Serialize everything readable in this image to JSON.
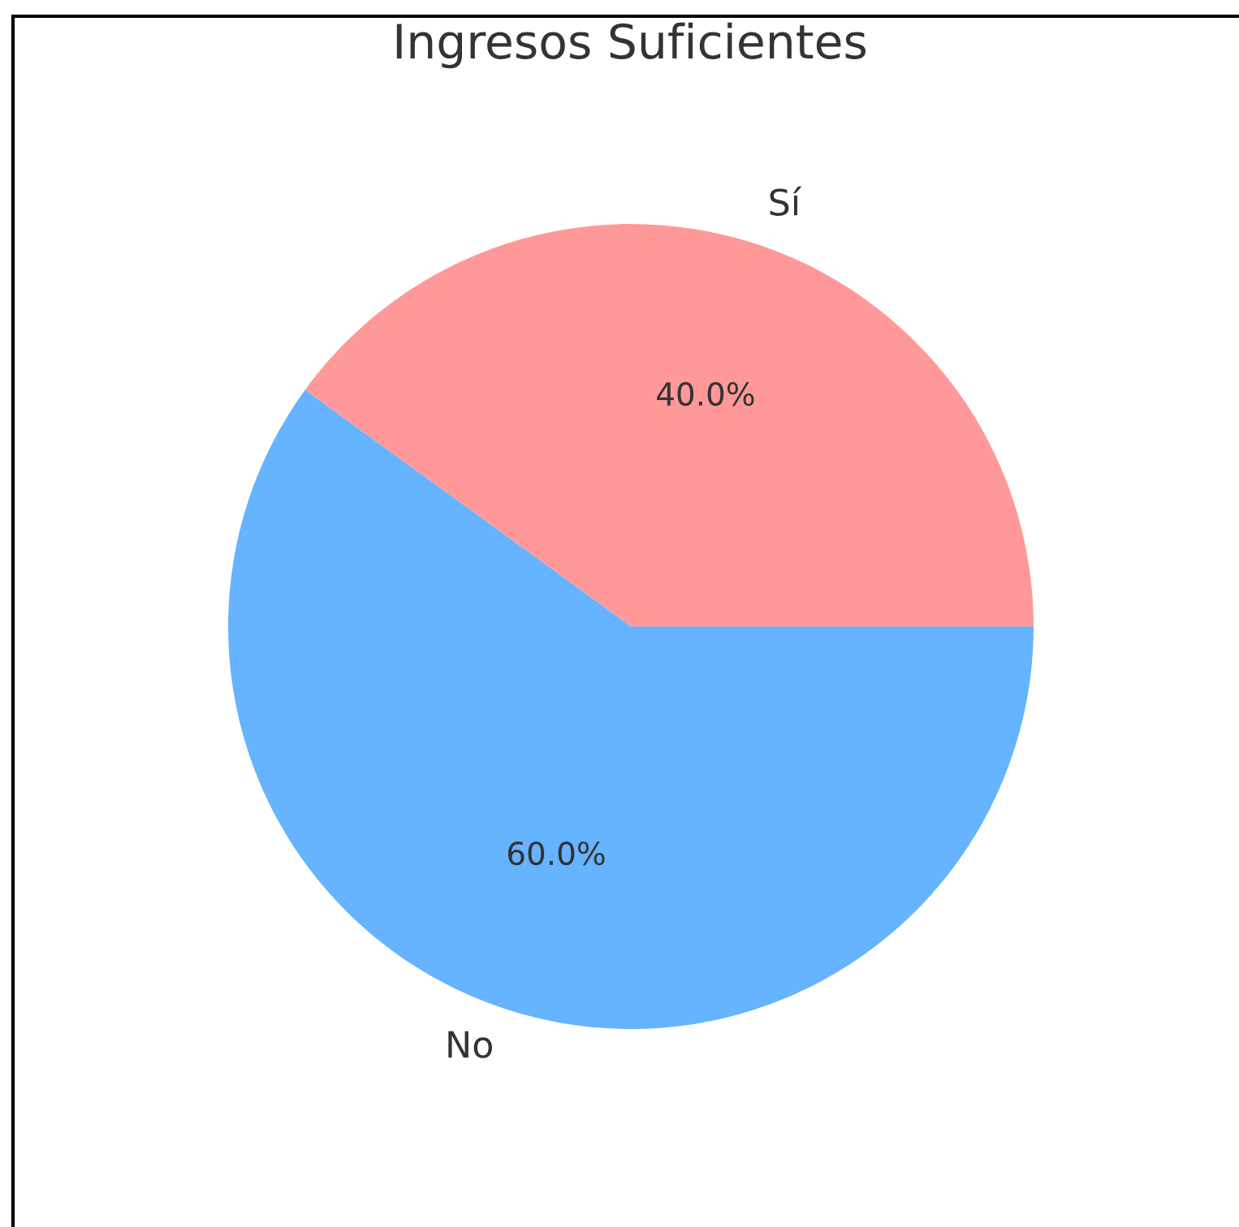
{
  "chart_data": {
    "type": "pie",
    "title": "Ingresos Suficientes",
    "categories": [
      "Sí",
      "No"
    ],
    "values": [
      40,
      60
    ],
    "colors": [
      "#ff9999",
      "#66b3ff"
    ],
    "value_labels": [
      "40.0%",
      "60.0%"
    ]
  }
}
